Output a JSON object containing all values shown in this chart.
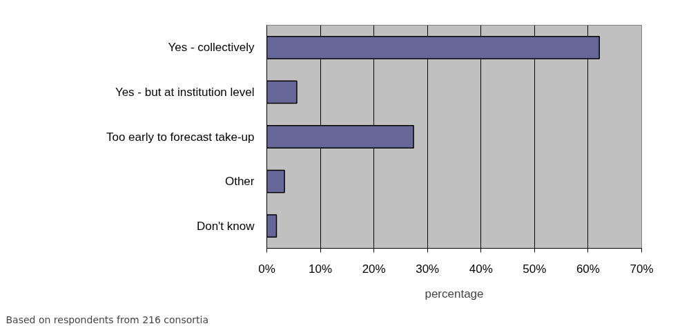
{
  "chart_data": {
    "type": "bar",
    "orientation": "horizontal",
    "categories": [
      "Yes - collectively",
      "Yes - but at institution level",
      "Too early to forecast take-up",
      "Other",
      "Don't know"
    ],
    "values": [
      62.1,
      5.6,
      27.4,
      3.3,
      1.8
    ],
    "color": "#666699",
    "xlim": [
      0,
      70
    ],
    "xticks": [
      {
        "value": 0,
        "label": "0%"
      },
      {
        "value": 10,
        "label": "10%"
      },
      {
        "value": 20,
        "label": "20%"
      },
      {
        "value": 30,
        "label": "30%"
      },
      {
        "value": 40,
        "label": "40%"
      },
      {
        "value": 50,
        "label": "50%"
      },
      {
        "value": 60,
        "label": "60%"
      },
      {
        "value": 70,
        "label": "70%"
      }
    ],
    "xlabel": "percentage",
    "grid": "x",
    "annotations": [
      "Based on respondents from 216 consortia"
    ]
  }
}
